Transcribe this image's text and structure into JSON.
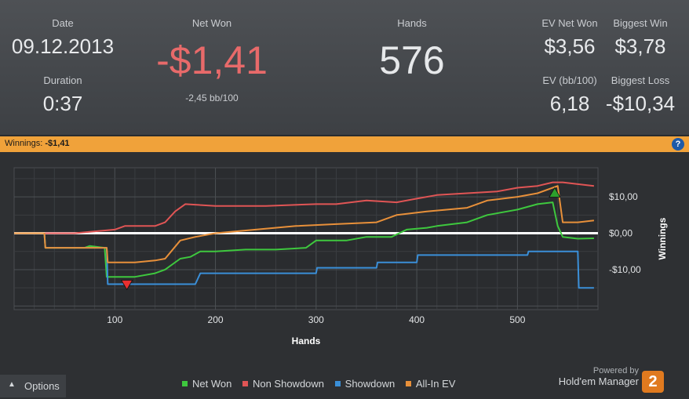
{
  "stats": {
    "date_label": "Date",
    "date_value": "09.12.2013",
    "duration_label": "Duration",
    "duration_value": "0:37",
    "net_won_label": "Net Won",
    "net_won_value": "-$1,41",
    "net_won_bb": "-2,45 bb/100",
    "hands_label": "Hands",
    "hands_value": "576",
    "ev_net_won_label": "EV Net Won",
    "ev_net_won_value": "$3,56",
    "ev_bb_label": "EV (bb/100)",
    "ev_bb_value": "6,18",
    "biggest_win_label": "Biggest Win",
    "biggest_win_value": "$3,78",
    "biggest_loss_label": "Biggest Loss",
    "biggest_loss_value": "-$10,34"
  },
  "colors": {
    "net_won_negative": "#e86a6a",
    "header_bar": "#f0a23a"
  },
  "winnings_bar": {
    "label": "Winnings:",
    "value": "-$1,41",
    "help_icon": "help-icon"
  },
  "chart_data": {
    "type": "line",
    "xlabel": "Hands",
    "ylabel": "Winnings",
    "xlim": [
      0,
      580
    ],
    "ylim": [
      -21,
      18
    ],
    "x_ticks": [
      100,
      200,
      300,
      400,
      500
    ],
    "x_tick_labels": [
      "100",
      "200",
      "300",
      "400",
      "500"
    ],
    "y_ticks": [
      10,
      0,
      -10
    ],
    "y_tick_labels": [
      "$10,00",
      "$0,00",
      "-$10,00"
    ],
    "grid": true,
    "legend_position": "bottom",
    "series": [
      {
        "name": "Net Won",
        "color": "#3ec83e",
        "x": [
          0,
          30,
          31,
          70,
          75,
          90,
          92,
          120,
          140,
          150,
          165,
          175,
          185,
          200,
          230,
          260,
          290,
          300,
          330,
          350,
          375,
          390,
          410,
          420,
          450,
          470,
          490,
          500,
          520,
          535,
          540,
          545,
          560,
          576
        ],
        "y": [
          0,
          0,
          -4,
          -4,
          -3.5,
          -4,
          -12,
          -12,
          -11,
          -10,
          -7,
          -6.5,
          -5,
          -5,
          -4.5,
          -4.5,
          -4,
          -2,
          -2,
          -1,
          -1,
          1,
          1.5,
          2,
          3,
          5,
          6,
          6.5,
          8,
          8.5,
          2,
          -1,
          -1.5,
          -1.4
        ]
      },
      {
        "name": "Non Showdown",
        "color": "#e05555",
        "x": [
          0,
          60,
          100,
          110,
          140,
          150,
          160,
          170,
          200,
          250,
          300,
          320,
          350,
          380,
          400,
          420,
          450,
          480,
          500,
          520,
          535,
          545,
          560,
          576
        ],
        "y": [
          0,
          0,
          1,
          2,
          2,
          3,
          6,
          8,
          7.5,
          7.5,
          8,
          8,
          9,
          8.5,
          9.5,
          10.5,
          11,
          11.5,
          12.5,
          13,
          14,
          14,
          13.5,
          13
        ]
      },
      {
        "name": "Showdown",
        "color": "#3a8fd8",
        "x": [
          0,
          30,
          31,
          70,
          92,
          93,
          180,
          185,
          300,
          301,
          360,
          361,
          400,
          401,
          510,
          511,
          560,
          561,
          576
        ],
        "y": [
          0,
          0,
          -4,
          -4,
          -4,
          -14,
          -14,
          -11,
          -11,
          -9.5,
          -9.5,
          -8,
          -8,
          -6,
          -6,
          -5,
          -5,
          -15,
          -15
        ]
      },
      {
        "name": "All-In EV",
        "color": "#e8903a",
        "x": [
          0,
          30,
          31,
          70,
          92,
          93,
          120,
          140,
          150,
          165,
          180,
          200,
          240,
          280,
          320,
          360,
          380,
          410,
          450,
          470,
          500,
          520,
          540,
          545,
          560,
          576
        ],
        "y": [
          0,
          0,
          -4,
          -4,
          -4,
          -8,
          -8,
          -7.5,
          -7,
          -2,
          -1,
          0,
          1,
          2,
          2.5,
          3,
          5,
          6,
          7,
          9,
          10,
          11,
          13,
          3,
          3,
          3.5
        ]
      }
    ],
    "markers": [
      {
        "type": "min",
        "color": "#e83030",
        "x": 112,
        "y": -14
      },
      {
        "type": "max",
        "color": "#2ca02c",
        "x": 537,
        "y": 11
      }
    ]
  },
  "legend": [
    {
      "label": "Net Won",
      "color": "#3ec83e"
    },
    {
      "label": "Non Showdown",
      "color": "#e05555"
    },
    {
      "label": "Showdown",
      "color": "#3a8fd8"
    },
    {
      "label": "All-In EV",
      "color": "#e8903a"
    }
  ],
  "options_label": "Options",
  "brand": {
    "powered": "Powered by",
    "name": "Hold'em Manager",
    "logo_text": "2"
  }
}
